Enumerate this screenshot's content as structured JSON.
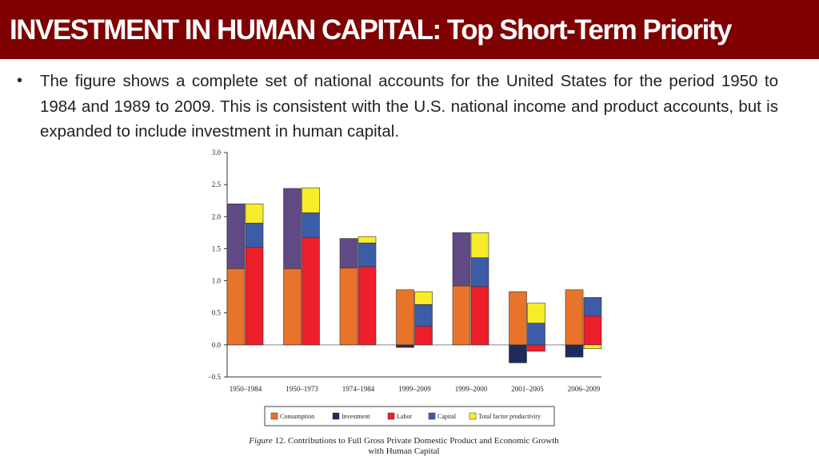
{
  "header": {
    "title": "INVESTMENT IN HUMAN CAPITAL: Top Short-Term Priority"
  },
  "body": {
    "bullet_text": "The figure shows a complete set of national accounts for the United States for the period 1950 to 1984 and 1989 to 2009. This is consistent with the U.S. national income and product accounts, but is expanded to include investment in human capital."
  },
  "caption": {
    "figure_label": "Figure",
    "text": "12. Contributions to Full Gross Private Domestic Product and Economic Growth",
    "line2": "with Human Capital"
  },
  "colors": {
    "title_bg": "#7f0000",
    "consumption": "#e8732a",
    "investment": "#1f2a5c",
    "consumption_top": "#5f4a85",
    "labor": "#ec1f2b",
    "capital": "#3d5ca8",
    "tfp": "#f7ec2a"
  },
  "chart_data": {
    "type": "bar",
    "subtype": "stacked-paired",
    "ylim": [
      -0.5,
      3.0
    ],
    "yticks": [
      "3.0",
      "2.5",
      "2.0",
      "1.5",
      "1.0",
      "0.5",
      "0.0",
      "−0.5"
    ],
    "ytick_values": [
      3.0,
      2.5,
      2.0,
      1.5,
      1.0,
      0.5,
      0.0,
      -0.5
    ],
    "categories": [
      "1950–1984",
      "1950–1973",
      "1974–1984",
      "1999–2009",
      "1999–2000",
      "2001–2005",
      "2006–2009"
    ],
    "legend": [
      "Consumption",
      "Investment",
      "Labor",
      "Capital",
      "Total factor productivity"
    ],
    "output_series": [
      {
        "name": "Consumption",
        "values": [
          1.19,
          1.19,
          1.2,
          0.86,
          0.92,
          0.83,
          0.86
        ]
      },
      {
        "name": "Investment",
        "values": [
          1.01,
          1.25,
          0.46,
          -0.04,
          0.83,
          -0.28,
          -0.19
        ]
      }
    ],
    "input_series": [
      {
        "name": "Labor",
        "values": [
          1.52,
          1.67,
          1.22,
          0.29,
          0.91,
          -0.1,
          0.45
        ]
      },
      {
        "name": "Capital",
        "values": [
          0.38,
          0.39,
          0.37,
          0.34,
          0.45,
          0.34,
          0.29
        ]
      },
      {
        "name": "Total factor productivity",
        "values": [
          0.3,
          0.39,
          0.1,
          0.2,
          0.39,
          0.31,
          -0.06
        ]
      }
    ]
  }
}
